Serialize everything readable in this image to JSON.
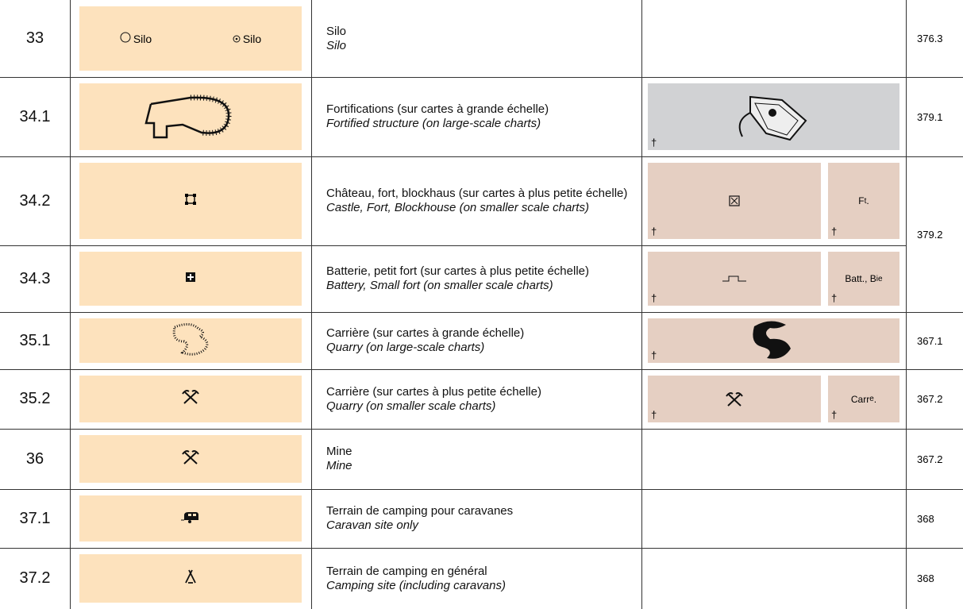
{
  "rows": [
    {
      "number": "33",
      "symbol_labels": [
        "Silo",
        "Silo"
      ],
      "fr": "Silo",
      "en": "Silo",
      "ref": "376.3"
    },
    {
      "number": "34.1",
      "fr": "Fortifications (sur cartes à grande échelle)",
      "en": "Fortified structure (on large-scale charts)",
      "examples": [
        {
          "dagger": "†"
        }
      ],
      "ref": "379.1"
    },
    {
      "number": "34.2",
      "fr": "Château, fort, blockhaus (sur cartes à plus petite échelle)",
      "en": "Castle, Fort, Blockhouse (on smaller scale charts)",
      "examples": [
        {
          "dagger": "†"
        },
        {
          "dagger": "†",
          "label": "F",
          "sup": "t",
          "after": "."
        }
      ],
      "ref": "379.2"
    },
    {
      "number": "34.3",
      "fr": "Batterie, petit fort (sur cartes à plus petite échelle)",
      "en": "Battery, Small fort (on smaller scale charts)",
      "examples": [
        {
          "dagger": "†"
        },
        {
          "dagger": "†",
          "label": "Batt., B",
          "sup": "ie"
        }
      ]
    },
    {
      "number": "35.1",
      "fr": "Carrière (sur cartes à grande échelle)",
      "en": "Quarry (on large-scale charts)",
      "examples": [
        {
          "dagger": "†"
        }
      ],
      "ref": "367.1"
    },
    {
      "number": "35.2",
      "fr": "Carrière (sur cartes à plus petite échelle)",
      "en": "Quarry (on smaller scale charts)",
      "examples": [
        {
          "dagger": "†"
        },
        {
          "dagger": "†",
          "label": "Carr",
          "sup": "e",
          "after": "."
        }
      ],
      "ref": "367.2"
    },
    {
      "number": "36",
      "fr": "Mine",
      "en": "Mine",
      "ref": "367.2"
    },
    {
      "number": "37.1",
      "fr": "Terrain de camping pour caravanes",
      "en": "Caravan site only",
      "ref": "368"
    },
    {
      "number": "37.2",
      "fr": "Terrain de camping en général",
      "en": "Camping site (including caravans)",
      "ref": "368"
    }
  ]
}
